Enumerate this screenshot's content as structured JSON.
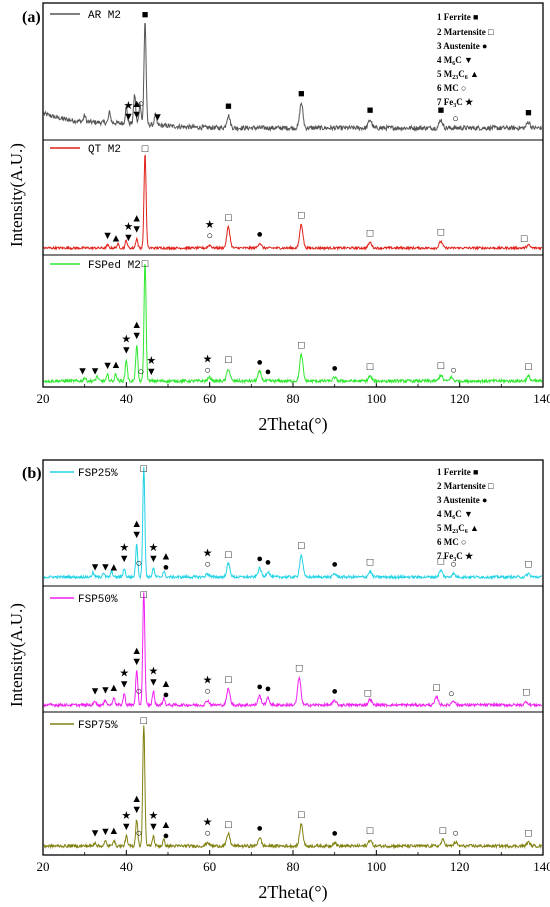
{
  "chart_data": [
    {
      "type": "line",
      "panel_label": "(a)",
      "xlabel": "2Theta(°)",
      "ylabel": "Intensity(A.U.)",
      "xlim": [
        20,
        140
      ],
      "x_ticks": [
        "20",
        "40",
        "60",
        "80",
        "100",
        "120",
        "140"
      ],
      "legend": [
        "1 Ferrite ■",
        "2 Martensite □",
        "3 Austenite ●",
        "4 M6C ▼",
        "5 M23C6 ▲",
        "6 MC ○",
        "7 Fe3C ★"
      ],
      "series": [
        {
          "name": "AR M2",
          "color": "#555555",
          "peaks": [
            [
              30,
              0.06
            ],
            [
              36,
              0.1
            ],
            [
              40,
              0.15
            ],
            [
              42,
              0.28
            ],
            [
              43.3,
              0.2
            ],
            [
              44.5,
              1.0
            ],
            [
              47,
              0.1
            ],
            [
              64.5,
              0.12
            ],
            [
              82,
              0.24
            ],
            [
              98.5,
              0.08
            ],
            [
              115.5,
              0.08
            ],
            [
              136.5,
              0.06
            ]
          ],
          "markers": [
            {
              "x": 44.5,
              "symbol": "■"
            },
            {
              "x": 64.5,
              "symbol": "■"
            },
            {
              "x": 82,
              "symbol": "■"
            },
            {
              "x": 98.5,
              "symbol": "■"
            },
            {
              "x": 115.5,
              "symbol": "■"
            },
            {
              "x": 136.5,
              "symbol": "■"
            },
            {
              "x": 40.5,
              "symbol": "★"
            },
            {
              "x": 40.5,
              "symbol": "▼"
            },
            {
              "x": 42.5,
              "symbol": "▲"
            },
            {
              "x": 42.5,
              "symbol": "▼"
            },
            {
              "x": 43.5,
              "symbol": "○"
            },
            {
              "x": 47.5,
              "symbol": "▼"
            },
            {
              "x": 119,
              "symbol": "○"
            }
          ]
        },
        {
          "name": "QT M2",
          "color": "#e0201a",
          "peaks": [
            [
              35.5,
              0.03
            ],
            [
              38,
              0.04
            ],
            [
              40,
              0.08
            ],
            [
              42.5,
              0.1
            ],
            [
              44.5,
              1.0
            ],
            [
              60,
              0.03
            ],
            [
              64.5,
              0.22
            ],
            [
              72,
              0.05
            ],
            [
              82,
              0.25
            ],
            [
              98.5,
              0.06
            ],
            [
              115.5,
              0.07
            ],
            [
              136.5,
              0.03
            ]
          ],
          "markers": [
            {
              "x": 44.5,
              "symbol": "□"
            },
            {
              "x": 64.5,
              "symbol": "□"
            },
            {
              "x": 82,
              "symbol": "□"
            },
            {
              "x": 98.5,
              "symbol": "□"
            },
            {
              "x": 115.5,
              "symbol": "□"
            },
            {
              "x": 135.5,
              "symbol": "□"
            },
            {
              "x": 35.5,
              "symbol": "▼"
            },
            {
              "x": 37.5,
              "symbol": "▲"
            },
            {
              "x": 40.5,
              "symbol": "★"
            },
            {
              "x": 40.5,
              "symbol": "▼"
            },
            {
              "x": 42.5,
              "symbol": "▲"
            },
            {
              "x": 42.5,
              "symbol": "▼"
            },
            {
              "x": 60,
              "symbol": "★"
            },
            {
              "x": 60,
              "symbol": "○"
            },
            {
              "x": 72,
              "symbol": "●"
            }
          ]
        },
        {
          "name": "FSPed M2",
          "color": "#2ee82e",
          "peaks": [
            [
              30,
              0.03
            ],
            [
              33,
              0.04
            ],
            [
              35.5,
              0.05
            ],
            [
              37.5,
              0.06
            ],
            [
              40,
              0.18
            ],
            [
              42.5,
              0.3
            ],
            [
              44.5,
              1.0
            ],
            [
              60,
              0.03
            ],
            [
              64.5,
              0.1
            ],
            [
              72,
              0.08
            ],
            [
              82,
              0.22
            ],
            [
              90,
              0.03
            ],
            [
              98.5,
              0.04
            ],
            [
              115.5,
              0.05
            ],
            [
              118,
              0.03
            ],
            [
              136.5,
              0.04
            ]
          ],
          "markers": [
            {
              "x": 44.5,
              "symbol": "□"
            },
            {
              "x": 64.5,
              "symbol": "□"
            },
            {
              "x": 82,
              "symbol": "□"
            },
            {
              "x": 98.5,
              "symbol": "□"
            },
            {
              "x": 115.5,
              "symbol": "□"
            },
            {
              "x": 136.5,
              "symbol": "□"
            },
            {
              "x": 29.5,
              "symbol": "▼"
            },
            {
              "x": 32.5,
              "symbol": "▼"
            },
            {
              "x": 35.5,
              "symbol": "▼"
            },
            {
              "x": 37.5,
              "symbol": "▲"
            },
            {
              "x": 40,
              "symbol": "★"
            },
            {
              "x": 40,
              "symbol": "▼"
            },
            {
              "x": 42.5,
              "symbol": "▲"
            },
            {
              "x": 42.5,
              "symbol": "▼"
            },
            {
              "x": 43.5,
              "symbol": "○"
            },
            {
              "x": 46,
              "symbol": "★"
            },
            {
              "x": 46,
              "symbol": "▼"
            },
            {
              "x": 59.5,
              "symbol": "★"
            },
            {
              "x": 59.5,
              "symbol": "○"
            },
            {
              "x": 72,
              "symbol": "●"
            },
            {
              "x": 74,
              "symbol": "●"
            },
            {
              "x": 90,
              "symbol": "●"
            },
            {
              "x": 118.5,
              "symbol": "○"
            }
          ]
        }
      ]
    },
    {
      "type": "line",
      "panel_label": "(b)",
      "xlabel": "2Theta(°)",
      "ylabel": "Intensity(A.U.)",
      "xlim": [
        20,
        140
      ],
      "x_ticks": [
        "20",
        "40",
        "60",
        "80",
        "100",
        "120",
        "140"
      ],
      "legend": [
        "1 Ferrite ■",
        "2 Martensite □",
        "3 Austenite ●",
        "4 M6C ▼",
        "5 M23C6 ▲",
        "6 MC ○",
        "7 Fe3C ★"
      ],
      "series": [
        {
          "name": "FSP25%",
          "color": "#22d3e6",
          "peaks": [
            [
              32,
              0.04
            ],
            [
              34.5,
              0.04
            ],
            [
              36.5,
              0.05
            ],
            [
              39.5,
              0.08
            ],
            [
              42.5,
              0.3
            ],
            [
              44.2,
              1.0
            ],
            [
              46.5,
              0.08
            ],
            [
              49,
              0.05
            ],
            [
              59.5,
              0.03
            ],
            [
              64.5,
              0.12
            ],
            [
              72,
              0.08
            ],
            [
              74,
              0.05
            ],
            [
              82,
              0.2
            ],
            [
              90,
              0.03
            ],
            [
              98.5,
              0.05
            ],
            [
              115.5,
              0.06
            ],
            [
              118.5,
              0.03
            ],
            [
              136.5,
              0.03
            ]
          ],
          "markers": [
            {
              "x": 44.2,
              "symbol": "□"
            },
            {
              "x": 64.5,
              "symbol": "□"
            },
            {
              "x": 82,
              "symbol": "□"
            },
            {
              "x": 98.5,
              "symbol": "□"
            },
            {
              "x": 115.5,
              "symbol": "□"
            },
            {
              "x": 136.5,
              "symbol": "□"
            },
            {
              "x": 32.5,
              "symbol": "▼"
            },
            {
              "x": 35,
              "symbol": "▼"
            },
            {
              "x": 37,
              "symbol": "▲"
            },
            {
              "x": 39.5,
              "symbol": "★"
            },
            {
              "x": 39.5,
              "symbol": "▼"
            },
            {
              "x": 42.5,
              "symbol": "▲"
            },
            {
              "x": 42.5,
              "symbol": "▼"
            },
            {
              "x": 43,
              "symbol": "○"
            },
            {
              "x": 46.5,
              "symbol": "★"
            },
            {
              "x": 46.5,
              "symbol": "▼"
            },
            {
              "x": 49.5,
              "symbol": "▲"
            },
            {
              "x": 49.5,
              "symbol": "●"
            },
            {
              "x": 59.5,
              "symbol": "★"
            },
            {
              "x": 59.5,
              "symbol": "○"
            },
            {
              "x": 72,
              "symbol": "●"
            },
            {
              "x": 74,
              "symbol": "●"
            },
            {
              "x": 90,
              "symbol": "●"
            },
            {
              "x": 118.5,
              "symbol": "○"
            }
          ]
        },
        {
          "name": "FSP50%",
          "color": "#f020f0",
          "peaks": [
            [
              32.5,
              0.04
            ],
            [
              35,
              0.05
            ],
            [
              37,
              0.07
            ],
            [
              39.5,
              0.1
            ],
            [
              42.5,
              0.3
            ],
            [
              44.2,
              1.0
            ],
            [
              46.5,
              0.12
            ],
            [
              49,
              0.06
            ],
            [
              59.5,
              0.04
            ],
            [
              64.5,
              0.14
            ],
            [
              72,
              0.08
            ],
            [
              74,
              0.06
            ],
            [
              81.5,
              0.24
            ],
            [
              90,
              0.04
            ],
            [
              98.5,
              0.05
            ],
            [
              114.5,
              0.07
            ],
            [
              118.5,
              0.04
            ],
            [
              136,
              0.03
            ]
          ],
          "markers": [
            {
              "x": 44.2,
              "symbol": "□"
            },
            {
              "x": 64.5,
              "symbol": "□"
            },
            {
              "x": 81.5,
              "symbol": "□"
            },
            {
              "x": 98,
              "symbol": "□"
            },
            {
              "x": 114.5,
              "symbol": "□"
            },
            {
              "x": 136,
              "symbol": "□"
            },
            {
              "x": 32.5,
              "symbol": "▼"
            },
            {
              "x": 35,
              "symbol": "▼"
            },
            {
              "x": 37,
              "symbol": "▲"
            },
            {
              "x": 39.5,
              "symbol": "★"
            },
            {
              "x": 39.5,
              "symbol": "▼"
            },
            {
              "x": 42.5,
              "symbol": "▲"
            },
            {
              "x": 42.5,
              "symbol": "▼"
            },
            {
              "x": 43,
              "symbol": "○"
            },
            {
              "x": 46.5,
              "symbol": "★"
            },
            {
              "x": 46.5,
              "symbol": "▼"
            },
            {
              "x": 49.5,
              "symbol": "▲"
            },
            {
              "x": 49.5,
              "symbol": "●"
            },
            {
              "x": 59.5,
              "symbol": "★"
            },
            {
              "x": 59.5,
              "symbol": "○"
            },
            {
              "x": 72,
              "symbol": "●"
            },
            {
              "x": 74,
              "symbol": "●"
            },
            {
              "x": 90,
              "symbol": "●"
            },
            {
              "x": 118,
              "symbol": "○"
            }
          ]
        },
        {
          "name": "FSP75%",
          "color": "#808010",
          "peaks": [
            [
              32.5,
              0.03
            ],
            [
              35,
              0.04
            ],
            [
              37,
              0.05
            ],
            [
              40,
              0.08
            ],
            [
              42.5,
              0.22
            ],
            [
              44.2,
              1.0
            ],
            [
              46.5,
              0.08
            ],
            [
              49,
              0.05
            ],
            [
              59.5,
              0.03
            ],
            [
              64.5,
              0.1
            ],
            [
              72,
              0.07
            ],
            [
              82,
              0.18
            ],
            [
              90,
              0.03
            ],
            [
              98.5,
              0.05
            ],
            [
              116,
              0.05
            ],
            [
              119,
              0.03
            ],
            [
              136.5,
              0.03
            ]
          ],
          "markers": [
            {
              "x": 44.2,
              "symbol": "□"
            },
            {
              "x": 64.5,
              "symbol": "□"
            },
            {
              "x": 82,
              "symbol": "□"
            },
            {
              "x": 98.5,
              "symbol": "□"
            },
            {
              "x": 116,
              "symbol": "□"
            },
            {
              "x": 136.5,
              "symbol": "□"
            },
            {
              "x": 32.5,
              "symbol": "▼"
            },
            {
              "x": 35,
              "symbol": "▼"
            },
            {
              "x": 37,
              "symbol": "▲"
            },
            {
              "x": 40,
              "symbol": "★"
            },
            {
              "x": 40,
              "symbol": "▼"
            },
            {
              "x": 42.5,
              "symbol": "▲"
            },
            {
              "x": 42.5,
              "symbol": "▼"
            },
            {
              "x": 43,
              "symbol": "○"
            },
            {
              "x": 46.5,
              "symbol": "★"
            },
            {
              "x": 46.5,
              "symbol": "▼"
            },
            {
              "x": 49.5,
              "symbol": "▲"
            },
            {
              "x": 49.5,
              "symbol": "●"
            },
            {
              "x": 59.5,
              "symbol": "★"
            },
            {
              "x": 59.5,
              "symbol": "○"
            },
            {
              "x": 72,
              "symbol": "●"
            },
            {
              "x": 90,
              "symbol": "●"
            },
            {
              "x": 119,
              "symbol": "○"
            }
          ]
        }
      ]
    }
  ]
}
